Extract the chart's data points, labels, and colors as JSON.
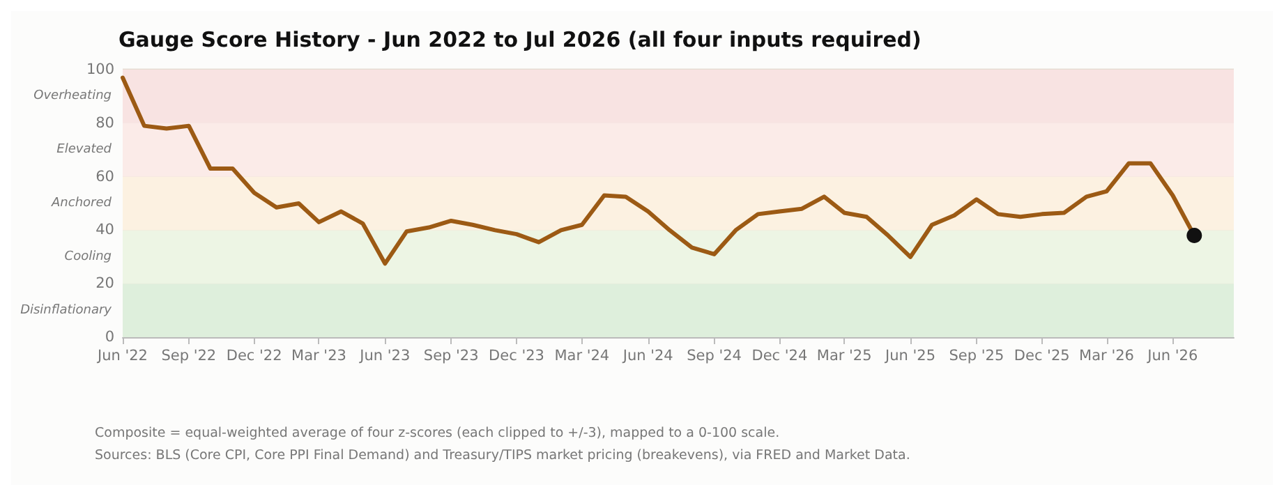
{
  "chart_data": {
    "type": "line",
    "title": "Gauge Score History - Jun 2022 to Jul 2026 (all four inputs required)",
    "x": [
      "2022-06",
      "2022-07",
      "2022-08",
      "2022-09",
      "2022-10",
      "2022-11",
      "2022-12",
      "2023-01",
      "2023-02",
      "2023-03",
      "2023-04",
      "2023-05",
      "2023-06",
      "2023-07",
      "2023-08",
      "2023-09",
      "2023-10",
      "2023-11",
      "2023-12",
      "2024-01",
      "2024-02",
      "2024-03",
      "2024-04",
      "2024-05",
      "2024-06",
      "2024-07",
      "2024-08",
      "2024-09",
      "2024-10",
      "2024-11",
      "2024-12",
      "2025-01",
      "2025-02",
      "2025-03",
      "2025-04",
      "2025-05",
      "2025-06",
      "2025-07",
      "2025-08",
      "2025-09",
      "2025-10",
      "2025-11",
      "2025-12",
      "2026-01",
      "2026-02",
      "2026-03",
      "2026-04",
      "2026-05",
      "2026-06",
      "2026-07"
    ],
    "series": [
      {
        "color": "#9c5a14",
        "marker": "none",
        "values": [
          97,
          79,
          78,
          79,
          63,
          63,
          54,
          48.5,
          50,
          43,
          47,
          42.5,
          27.5,
          39.5,
          41,
          43.5,
          42,
          40,
          38.5,
          35.5,
          40,
          42,
          53,
          52.5,
          47,
          40,
          33.5,
          31,
          40,
          46,
          47,
          48,
          52.5,
          46.5,
          45,
          38,
          30,
          42,
          45.5,
          51.5,
          46,
          45,
          46,
          46.5,
          52.5,
          54.5,
          65,
          65,
          53,
          38
        ]
      },
      {
        "type": "scatter",
        "color": "#111111",
        "marker": "circle",
        "x": [
          "2026-07"
        ],
        "values": [
          38
        ]
      }
    ],
    "xlim": [
      "2022-06",
      "2026-08-25"
    ],
    "xticks": [
      {
        "value": "2022-06",
        "label": "Jun '22"
      },
      {
        "value": "2022-09",
        "label": "Sep '22"
      },
      {
        "value": "2022-12",
        "label": "Dec '22"
      },
      {
        "value": "2023-03",
        "label": "Mar '23"
      },
      {
        "value": "2023-06",
        "label": "Jun '23"
      },
      {
        "value": "2023-09",
        "label": "Sep '23"
      },
      {
        "value": "2023-12",
        "label": "Dec '23"
      },
      {
        "value": "2024-03",
        "label": "Mar '24"
      },
      {
        "value": "2024-06",
        "label": "Jun '24"
      },
      {
        "value": "2024-09",
        "label": "Sep '24"
      },
      {
        "value": "2024-12",
        "label": "Dec '24"
      },
      {
        "value": "2025-03",
        "label": "Mar '25"
      },
      {
        "value": "2025-06",
        "label": "Jun '25"
      },
      {
        "value": "2025-09",
        "label": "Sep '25"
      },
      {
        "value": "2025-12",
        "label": "Dec '25"
      },
      {
        "value": "2026-03",
        "label": "Mar '26"
      },
      {
        "value": "2026-06",
        "label": "Jun '26"
      }
    ],
    "ylim": [
      0,
      100
    ],
    "yticks": [
      0,
      20,
      40,
      60,
      80,
      100
    ],
    "grid": "y",
    "bands": [
      {
        "axis": "y",
        "from": 0,
        "to": 20,
        "label": "Disinflationary",
        "color": "#deefdc"
      },
      {
        "axis": "y",
        "from": 20,
        "to": 40,
        "label": "Cooling",
        "color": "#edf5e4"
      },
      {
        "axis": "y",
        "from": 40,
        "to": 60,
        "label": "Anchored",
        "color": "#fcf1e1"
      },
      {
        "axis": "y",
        "from": 60,
        "to": 80,
        "label": "Elevated",
        "color": "#fbebe8"
      },
      {
        "axis": "y",
        "from": 80,
        "to": 100,
        "label": "Overheating",
        "color": "#f8e3e2"
      }
    ],
    "annotations": [
      "Composite = equal-weighted average of four z-scores (each clipped to +/-3), mapped to a 0-100 scale.",
      "Sources: BLS (Core CPI, Core PPI Final Demand) and Treasury/TIPS market pricing (breakevens), via FRED and Market Data."
    ]
  }
}
